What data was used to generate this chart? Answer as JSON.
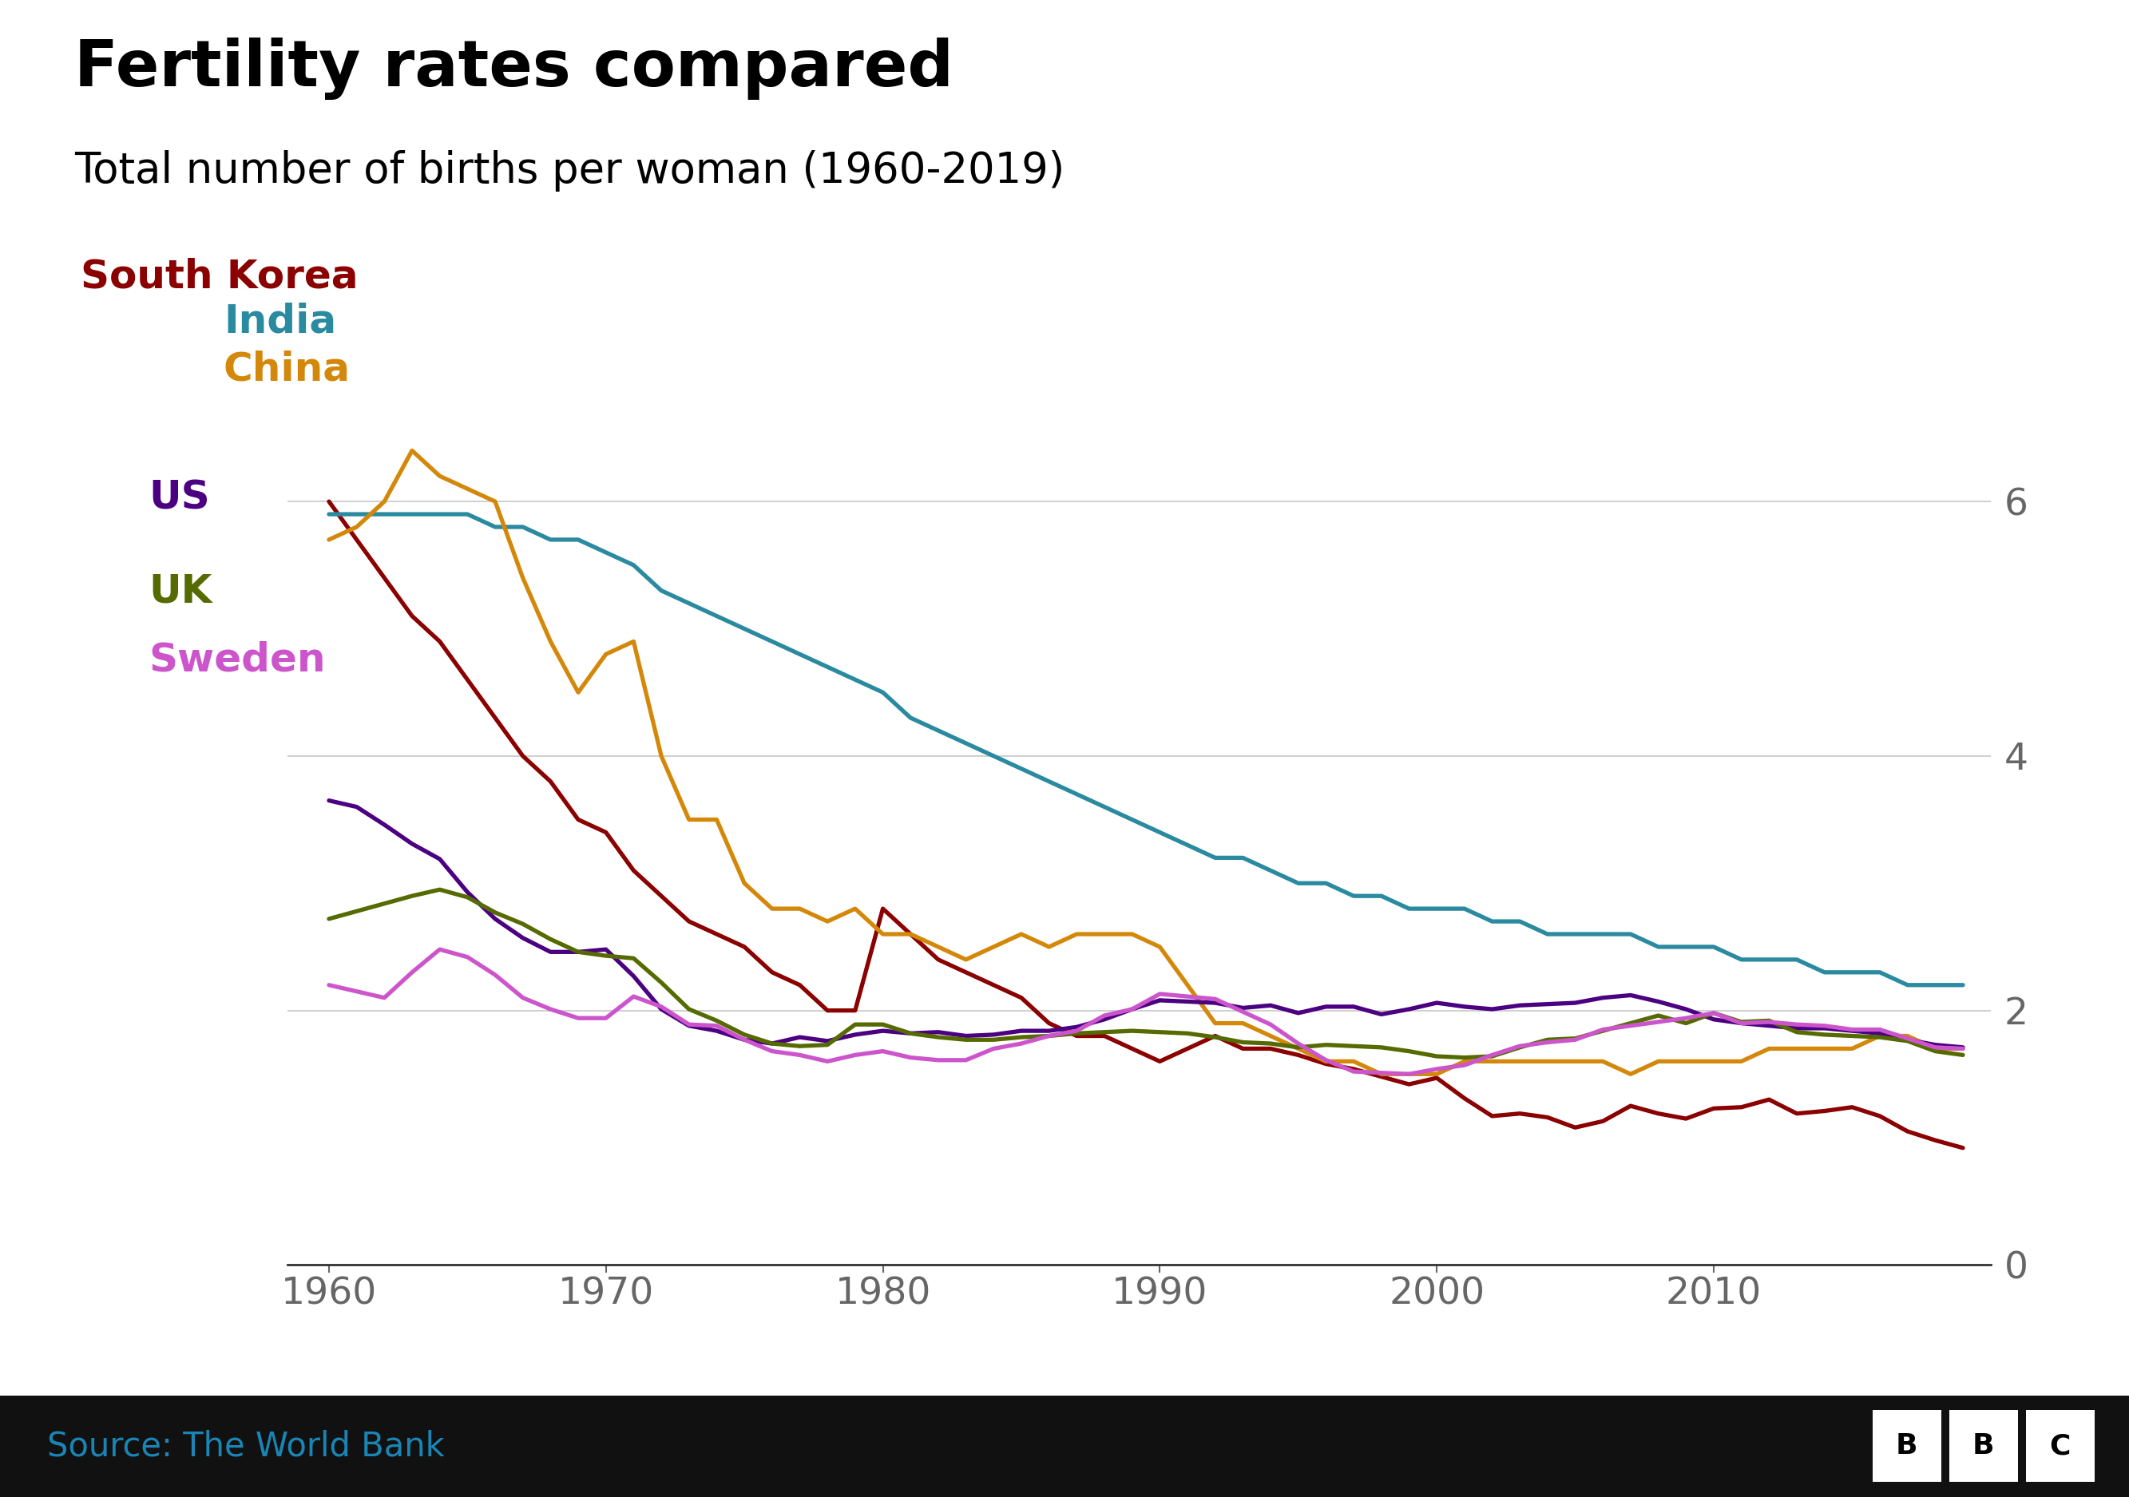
{
  "title": "Fertility rates compared",
  "subtitle": "Total number of births per woman (1960-2019)",
  "source": "Source: The World Bank",
  "years": [
    1960,
    1961,
    1962,
    1963,
    1964,
    1965,
    1966,
    1967,
    1968,
    1969,
    1970,
    1971,
    1972,
    1973,
    1974,
    1975,
    1976,
    1977,
    1978,
    1979,
    1980,
    1981,
    1982,
    1983,
    1984,
    1985,
    1986,
    1987,
    1988,
    1989,
    1990,
    1991,
    1992,
    1993,
    1994,
    1995,
    1996,
    1997,
    1998,
    1999,
    2000,
    2001,
    2002,
    2003,
    2004,
    2005,
    2006,
    2007,
    2008,
    2009,
    2010,
    2011,
    2012,
    2013,
    2014,
    2015,
    2016,
    2017,
    2018,
    2019
  ],
  "south_korea": [
    6.0,
    5.7,
    5.4,
    5.1,
    4.9,
    4.6,
    4.3,
    4.0,
    3.8,
    3.5,
    3.4,
    3.1,
    2.9,
    2.7,
    2.6,
    2.5,
    2.3,
    2.2,
    2.0,
    2.0,
    2.8,
    2.6,
    2.4,
    2.3,
    2.2,
    2.1,
    1.9,
    1.8,
    1.8,
    1.7,
    1.6,
    1.7,
    1.8,
    1.7,
    1.7,
    1.65,
    1.58,
    1.54,
    1.48,
    1.42,
    1.47,
    1.31,
    1.17,
    1.19,
    1.16,
    1.08,
    1.13,
    1.25,
    1.19,
    1.15,
    1.23,
    1.24,
    1.3,
    1.19,
    1.21,
    1.24,
    1.17,
    1.05,
    0.98,
    0.92
  ],
  "india": [
    5.9,
    5.9,
    5.9,
    5.9,
    5.9,
    5.9,
    5.8,
    5.8,
    5.7,
    5.7,
    5.6,
    5.5,
    5.3,
    5.2,
    5.1,
    5.0,
    4.9,
    4.8,
    4.7,
    4.6,
    4.5,
    4.3,
    4.2,
    4.1,
    4.0,
    3.9,
    3.8,
    3.7,
    3.6,
    3.5,
    3.4,
    3.3,
    3.2,
    3.2,
    3.1,
    3.0,
    3.0,
    2.9,
    2.9,
    2.8,
    2.8,
    2.8,
    2.7,
    2.7,
    2.6,
    2.6,
    2.6,
    2.6,
    2.5,
    2.5,
    2.5,
    2.4,
    2.4,
    2.4,
    2.3,
    2.3,
    2.3,
    2.2,
    2.2,
    2.2
  ],
  "china": [
    5.7,
    5.8,
    6.0,
    6.4,
    6.2,
    6.1,
    6.0,
    5.4,
    4.9,
    4.5,
    4.8,
    4.9,
    4.0,
    3.5,
    3.5,
    3.0,
    2.8,
    2.8,
    2.7,
    2.8,
    2.6,
    2.6,
    2.5,
    2.4,
    2.5,
    2.6,
    2.5,
    2.6,
    2.6,
    2.6,
    2.5,
    2.2,
    1.9,
    1.9,
    1.8,
    1.7,
    1.6,
    1.6,
    1.5,
    1.5,
    1.5,
    1.6,
    1.6,
    1.6,
    1.6,
    1.6,
    1.6,
    1.5,
    1.6,
    1.6,
    1.6,
    1.6,
    1.7,
    1.7,
    1.7,
    1.7,
    1.8,
    1.8,
    1.7,
    1.7
  ],
  "us": [
    3.65,
    3.6,
    3.46,
    3.31,
    3.19,
    2.93,
    2.72,
    2.57,
    2.46,
    2.46,
    2.48,
    2.27,
    2.01,
    1.88,
    1.84,
    1.77,
    1.74,
    1.79,
    1.76,
    1.81,
    1.84,
    1.82,
    1.83,
    1.8,
    1.81,
    1.84,
    1.84,
    1.87,
    1.93,
    2.01,
    2.08,
    2.07,
    2.06,
    2.02,
    2.04,
    1.98,
    2.03,
    2.03,
    1.97,
    2.01,
    2.06,
    2.03,
    2.01,
    2.04,
    2.05,
    2.06,
    2.1,
    2.12,
    2.07,
    2.01,
    1.93,
    1.9,
    1.88,
    1.86,
    1.86,
    1.84,
    1.82,
    1.77,
    1.73,
    1.71
  ],
  "uk": [
    2.72,
    2.78,
    2.84,
    2.9,
    2.95,
    2.89,
    2.77,
    2.68,
    2.56,
    2.46,
    2.43,
    2.41,
    2.22,
    2.01,
    1.92,
    1.81,
    1.74,
    1.72,
    1.73,
    1.89,
    1.89,
    1.82,
    1.79,
    1.77,
    1.77,
    1.79,
    1.8,
    1.82,
    1.83,
    1.84,
    1.83,
    1.82,
    1.79,
    1.75,
    1.74,
    1.71,
    1.73,
    1.72,
    1.71,
    1.68,
    1.64,
    1.63,
    1.64,
    1.71,
    1.77,
    1.78,
    1.84,
    1.9,
    1.96,
    1.9,
    1.98,
    1.91,
    1.92,
    1.83,
    1.81,
    1.8,
    1.79,
    1.76,
    1.68,
    1.65
  ],
  "sweden": [
    2.2,
    2.15,
    2.1,
    2.3,
    2.48,
    2.42,
    2.28,
    2.1,
    2.01,
    1.94,
    1.94,
    2.11,
    2.03,
    1.89,
    1.88,
    1.77,
    1.68,
    1.65,
    1.6,
    1.65,
    1.68,
    1.63,
    1.61,
    1.61,
    1.7,
    1.74,
    1.8,
    1.84,
    1.96,
    2.01,
    2.13,
    2.11,
    2.09,
    1.99,
    1.89,
    1.74,
    1.61,
    1.52,
    1.51,
    1.5,
    1.54,
    1.57,
    1.65,
    1.72,
    1.75,
    1.77,
    1.85,
    1.88,
    1.91,
    1.94,
    1.98,
    1.9,
    1.91,
    1.89,
    1.88,
    1.85,
    1.85,
    1.78,
    1.71,
    1.7
  ],
  "colors": {
    "south_korea": "#8B0000",
    "india": "#2A8A9F",
    "china": "#D4880A",
    "us": "#4B0082",
    "uk": "#556B00",
    "sweden": "#CC55CC"
  },
  "labels": {
    "south_korea": "South Korea",
    "india": "India",
    "china": "China",
    "us": "US",
    "uk": "UK",
    "sweden": "Sweden"
  },
  "ylim": [
    0,
    7
  ],
  "yticks": [
    0,
    2,
    4,
    6
  ],
  "xticks": [
    1960,
    1970,
    1980,
    1990,
    2000,
    2010
  ],
  "background_color": "#ffffff",
  "title_fontsize": 58,
  "subtitle_fontsize": 38,
  "label_fontsize": 36,
  "tick_fontsize": 34,
  "source_fontsize": 30,
  "line_width": 3.8
}
